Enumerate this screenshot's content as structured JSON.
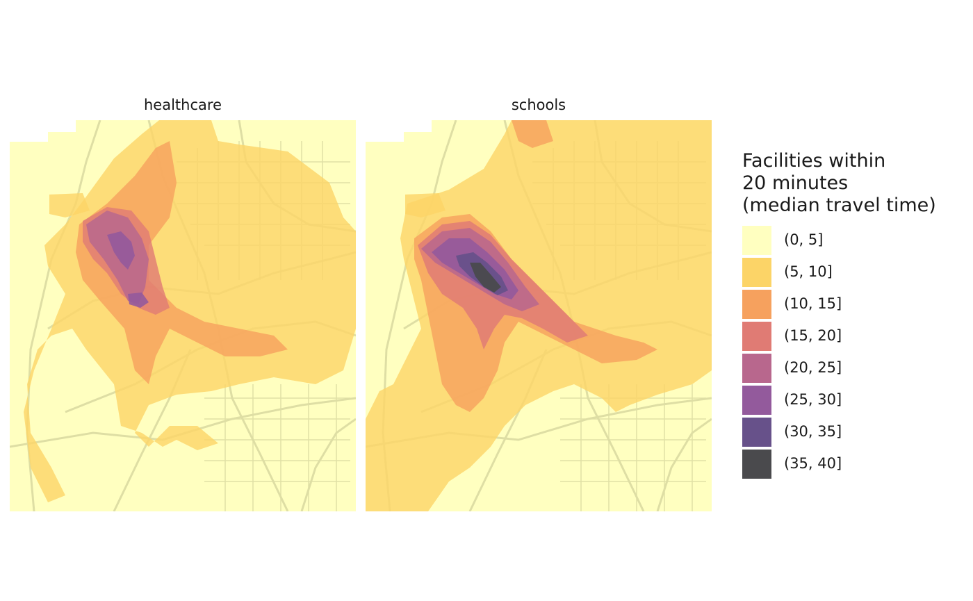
{
  "panels": [
    {
      "title": "healthcare"
    },
    {
      "title": "schools"
    }
  ],
  "legend": {
    "title": "Facilities within\n20 minutes\n(median travel time)",
    "items": [
      {
        "label": "(0, 5]",
        "color": "#ffffc0"
      },
      {
        "label": "(5, 10]",
        "color": "#fcd467"
      },
      {
        "label": "(10, 15]",
        "color": "#f6a15e"
      },
      {
        "label": "(15, 20]",
        "color": "#e07b74"
      },
      {
        "label": "(20, 25]",
        "color": "#b8678d"
      },
      {
        "label": "(25, 30]",
        "color": "#935a9c"
      },
      {
        "label": "(30, 35]",
        "color": "#67518a"
      },
      {
        "label": "(35, 40]",
        "color": "#4a4a4d"
      }
    ]
  },
  "colors": {
    "background": "#ffffc0",
    "road_network": "#dddda3"
  }
}
